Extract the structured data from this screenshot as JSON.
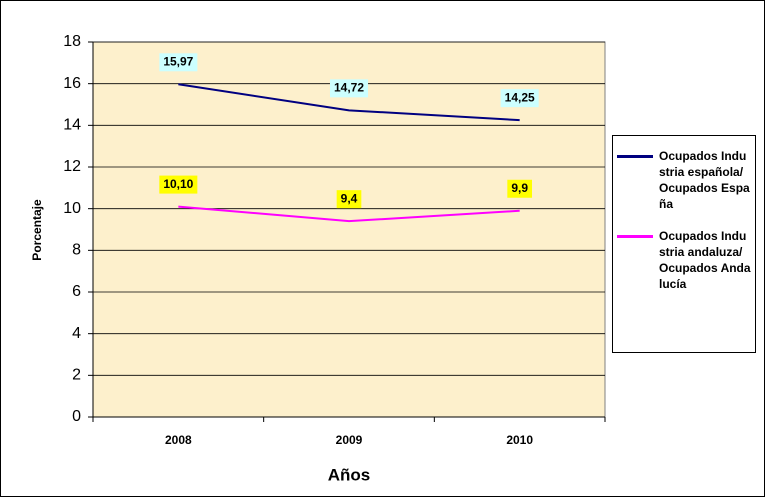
{
  "chart_data": {
    "type": "line",
    "categories": [
      "2008",
      "2009",
      "2010"
    ],
    "series": [
      {
        "name": "Ocupados Industria española/ Ocupados España",
        "color": "#000080",
        "label_bg": "#ccffff",
        "values": [
          15.97,
          14.72,
          14.25
        ],
        "value_labels": [
          "15,97",
          "14,72",
          "14,25"
        ]
      },
      {
        "name": "Ocupados Industria andaluza/Ocupados Andalucía",
        "color": "#ff00ff",
        "label_bg": "#ffff00",
        "values": [
          10.1,
          9.4,
          9.9
        ],
        "value_labels": [
          "10,10",
          "9,4",
          "9,9"
        ]
      }
    ],
    "ylim": [
      0,
      18
    ],
    "yticks": [
      0,
      2,
      4,
      6,
      8,
      10,
      12,
      14,
      16,
      18
    ],
    "grid": true,
    "y_label": "Porcentaje",
    "x_label": "Años",
    "legend": "right"
  }
}
